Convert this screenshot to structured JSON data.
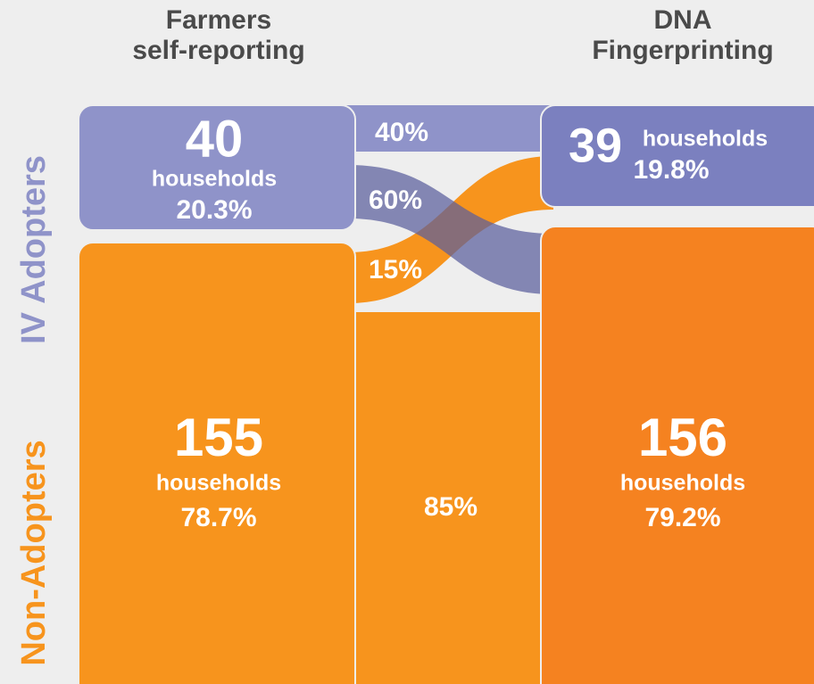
{
  "columns": [
    {
      "title_lines": [
        "Farmers",
        "self-reporting"
      ]
    },
    {
      "title_lines": [
        "DNA",
        "Fingerprinting"
      ]
    }
  ],
  "row_labels": [
    "IV Adopters",
    "Non-Adopters"
  ],
  "nodes": [
    {
      "count": "40",
      "unit": "households",
      "percent": "20.3%"
    },
    {
      "count": "155",
      "unit": "households",
      "percent": "78.7%"
    },
    {
      "count": "39",
      "unit": "households",
      "percent": "19.8%"
    },
    {
      "count": "156",
      "unit": "households",
      "percent": "79.2%"
    }
  ],
  "flows": [
    "40%",
    "60%",
    "15%",
    "85%"
  ]
}
